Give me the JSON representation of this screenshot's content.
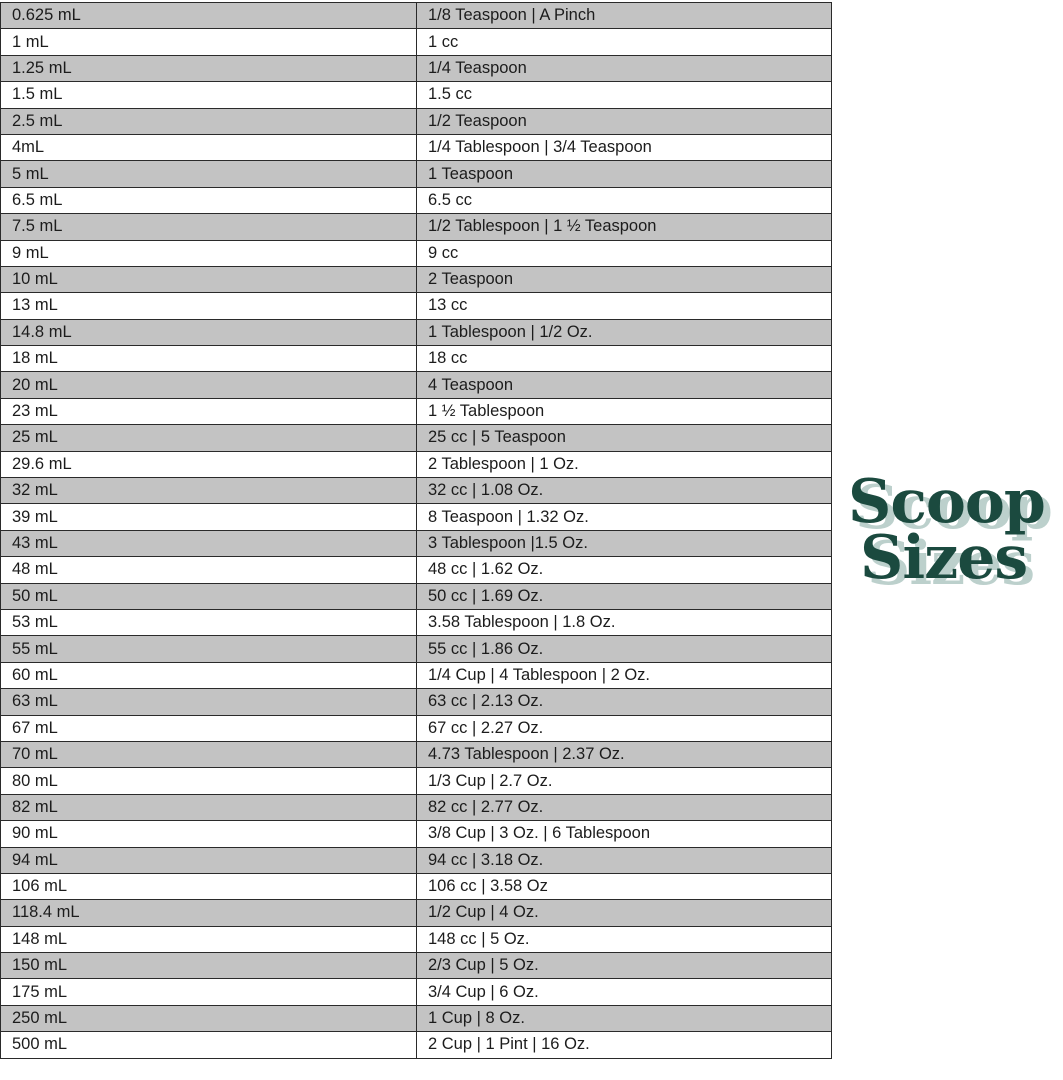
{
  "logo": {
    "line1": "Scoop",
    "line2": "Sizes",
    "color": "#1b4a3f",
    "shadow_color": "#bcd0cc"
  },
  "rows": [
    [
      "0.625 mL",
      "1/8 Teaspoon | A Pinch"
    ],
    [
      "1 mL",
      "1 cc"
    ],
    [
      "1.25 mL",
      "1/4 Teaspoon"
    ],
    [
      "1.5 mL",
      "1.5 cc"
    ],
    [
      "2.5 mL",
      "1/2 Teaspoon"
    ],
    [
      "4mL",
      "1/4 Tablespoon | 3/4 Teaspoon"
    ],
    [
      "5 mL",
      "1 Teaspoon"
    ],
    [
      "6.5 mL",
      "6.5 cc"
    ],
    [
      "7.5 mL",
      "1/2 Tablespoon | 1 ½ Teaspoon"
    ],
    [
      "9 mL",
      "9 cc"
    ],
    [
      "10 mL",
      "2 Teaspoon"
    ],
    [
      "13 mL",
      "13 cc"
    ],
    [
      "14.8 mL",
      "1 Tablespoon | 1/2 Oz."
    ],
    [
      "18 mL",
      "18 cc"
    ],
    [
      "20 mL",
      "4 Teaspoon"
    ],
    [
      "23 mL",
      "1 ½ Tablespoon"
    ],
    [
      "25 mL",
      "25 cc | 5 Teaspoon"
    ],
    [
      "29.6 mL",
      "2 Tablespoon | 1 Oz."
    ],
    [
      "32 mL",
      "32 cc | 1.08 Oz."
    ],
    [
      "39 mL",
      "8 Teaspoon | 1.32 Oz."
    ],
    [
      "43 mL",
      "3 Tablespoon |1.5 Oz."
    ],
    [
      "48 mL",
      "48 cc | 1.62 Oz."
    ],
    [
      "50 mL",
      "50 cc | 1.69 Oz."
    ],
    [
      "53 mL",
      "3.58 Tablespoon | 1.8 Oz."
    ],
    [
      "55 mL",
      "55 cc | 1.86 Oz."
    ],
    [
      "60 mL",
      "1/4 Cup | 4 Tablespoon | 2 Oz."
    ],
    [
      "63 mL",
      "63 cc | 2.13 Oz."
    ],
    [
      "67 mL",
      "67 cc | 2.27 Oz."
    ],
    [
      "70 mL",
      "4.73 Tablespoon | 2.37 Oz."
    ],
    [
      "80 mL",
      "1/3 Cup | 2.7 Oz."
    ],
    [
      "82 mL",
      "82 cc | 2.77 Oz."
    ],
    [
      "90 mL",
      "3/8 Cup | 3 Oz. | 6 Tablespoon"
    ],
    [
      "94 mL",
      "94 cc | 3.18 Oz."
    ],
    [
      "106 mL",
      "106 cc | 3.58 Oz"
    ],
    [
      "118.4 mL",
      "1/2 Cup | 4 Oz."
    ],
    [
      "148 mL",
      "148 cc | 5 Oz."
    ],
    [
      "150 mL",
      "2/3 Cup | 5 Oz."
    ],
    [
      "175 mL",
      "3/4 Cup | 6 Oz."
    ],
    [
      "250 mL",
      "1 Cup | 8 Oz."
    ],
    [
      "500 mL",
      "2 Cup | 1 Pint | 16 Oz."
    ]
  ]
}
